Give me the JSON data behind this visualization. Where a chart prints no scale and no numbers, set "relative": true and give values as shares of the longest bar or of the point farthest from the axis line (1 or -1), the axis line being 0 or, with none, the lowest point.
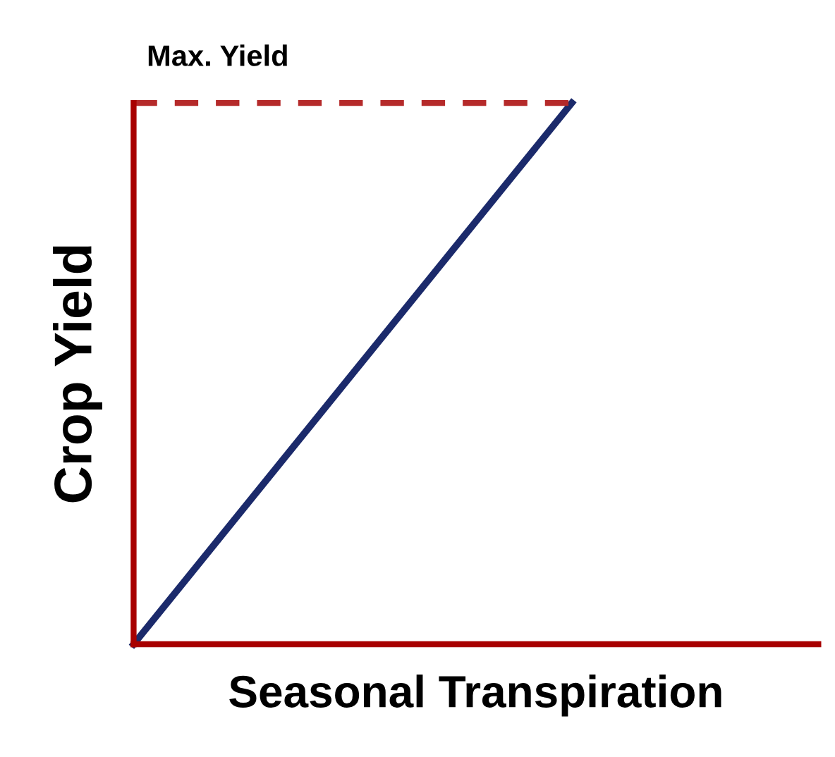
{
  "chart_data": {
    "type": "line",
    "relative": true,
    "xlabel": "Seasonal Transpiration",
    "ylabel": "Crop Yield",
    "categories": [
      null,
      null
    ],
    "series": [
      {
        "color": "#1b2a6b",
        "values": [
          0,
          1
        ],
        "line_style": "solid"
      },
      {
        "name": "Max. Yield",
        "color": "#b52a2a",
        "values": [
          1,
          1
        ],
        "line_style": "dashed"
      }
    ],
    "legend": false,
    "marker": "none"
  }
}
